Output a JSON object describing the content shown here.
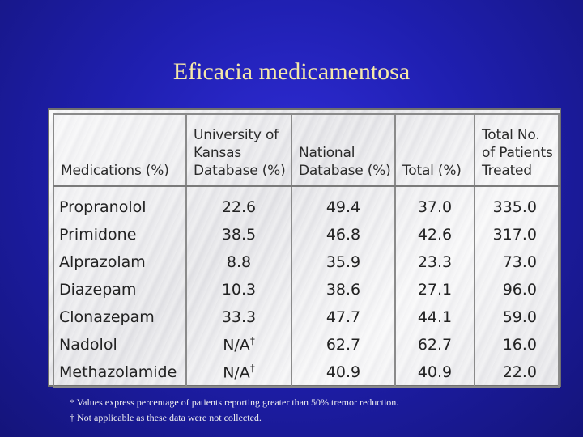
{
  "title": "Eficacia medicamentosa",
  "table": {
    "headers": [
      "Medications (%)",
      "University of Kansas Database (%)",
      "National Database (%)",
      "Total (%)",
      "Total No. of Patients Treated"
    ],
    "rows": [
      {
        "medication": "Propranolol",
        "kansas": "22.6",
        "national": "49.4",
        "total": "37.0",
        "patients": "335.0"
      },
      {
        "medication": "Primidone",
        "kansas": "38.5",
        "national": "46.8",
        "total": "42.6",
        "patients": "317.0"
      },
      {
        "medication": "Alprazolam",
        "kansas": "8.8",
        "national": "35.9",
        "total": "23.3",
        "patients": "73.0"
      },
      {
        "medication": "Diazepam",
        "kansas": "10.3",
        "national": "38.6",
        "total": "27.1",
        "patients": "96.0"
      },
      {
        "medication": "Clonazepam",
        "kansas": "33.3",
        "national": "47.7",
        "total": "44.1",
        "patients": "59.0"
      },
      {
        "medication": "Nadolol",
        "kansas": "N/A",
        "kansas_mark": "†",
        "national": "62.7",
        "total": "62.7",
        "patients": "16.0"
      },
      {
        "medication": "Methazolamide",
        "kansas": "N/A",
        "kansas_mark": "†",
        "national": "40.9",
        "total": "40.9",
        "patients": "22.0"
      }
    ]
  },
  "footnotes": [
    "* Values express percentage of patients reporting greater than 50% tremor reduction.",
    "† Not applicable as these data were not collected."
  ]
}
